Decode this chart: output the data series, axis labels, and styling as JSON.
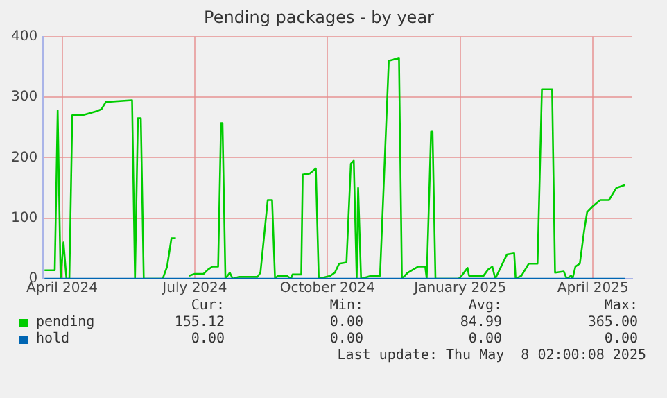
{
  "chart_data": {
    "type": "line",
    "title": "Pending packages - by year",
    "xlim": [
      "2024-03-30",
      "2025-05-08"
    ],
    "xticks": [
      {
        "value": "2024-04-12",
        "label": "April 2024"
      },
      {
        "value": "2024-07-12",
        "label": "July 2024"
      },
      {
        "value": "2024-10-11",
        "label": "October 2024"
      },
      {
        "value": "2025-01-10",
        "label": "January 2025"
      },
      {
        "value": "2025-04-11",
        "label": "April 2025"
      }
    ],
    "ylim": [
      0,
      400
    ],
    "yticks": [
      0,
      100,
      200,
      300,
      400
    ],
    "grid": true,
    "legend": "bottom",
    "marker": "none",
    "line_style": "solid",
    "series": [
      {
        "name": "hold",
        "color": "#0066b3",
        "x": [
          "2024-03-31",
          "2025-05-03"
        ],
        "values": [
          0,
          0
        ]
      },
      {
        "name": "pending",
        "color": "#00cc00",
        "x": [
          "2024-03-31",
          "2024-04-07",
          "2024-04-09",
          "2024-04-11",
          "2024-04-13",
          "2024-04-15",
          "2024-04-17",
          "2024-04-19",
          "2024-04-26",
          "2024-05-06",
          "2024-05-09",
          "2024-05-12",
          "2024-05-30",
          "2024-06-01",
          "2024-06-03",
          "2024-06-05",
          "2024-06-07",
          "2024-06-20",
          "2024-06-23",
          "2024-06-26",
          "2024-06-29",
          "2024-07-03",
          "2024-07-08",
          "2024-07-12",
          "2024-07-18",
          "2024-07-21",
          "2024-07-24",
          "2024-07-28",
          "2024-07-30",
          "2024-07-31",
          "2024-08-02",
          "2024-08-05",
          "2024-08-07",
          "2024-08-11",
          "2024-08-24",
          "2024-08-26",
          "2024-08-31",
          "2024-09-03",
          "2024-09-05",
          "2024-09-07",
          "2024-09-13",
          "2024-09-16",
          "2024-09-17",
          "2024-09-23",
          "2024-09-24",
          "2024-09-29",
          "2024-10-03",
          "2024-10-05",
          "2024-10-13",
          "2024-10-16",
          "2024-10-19",
          "2024-10-24",
          "2024-10-27",
          "2024-10-29",
          "2024-10-31",
          "2024-11-01",
          "2024-11-03",
          "2024-11-10",
          "2024-11-16",
          "2024-11-22",
          "2024-11-25",
          "2024-11-29",
          "2024-12-01",
          "2024-12-05",
          "2024-12-12",
          "2024-12-17",
          "2024-12-18",
          "2024-12-21",
          "2024-12-22",
          "2024-12-24",
          "2025-01-09",
          "2025-01-11",
          "2025-01-15",
          "2025-01-16",
          "2025-01-19",
          "2025-01-26",
          "2025-01-29",
          "2025-02-01",
          "2025-02-03",
          "2025-02-11",
          "2025-02-16",
          "2025-02-17",
          "2025-02-21",
          "2025-02-26",
          "2025-03-04",
          "2025-03-07",
          "2025-03-14",
          "2025-03-16",
          "2025-03-22",
          "2025-03-24",
          "2025-03-27",
          "2025-03-28",
          "2025-03-30",
          "2025-04-02",
          "2025-04-05",
          "2025-04-07",
          "2025-04-11",
          "2025-04-16",
          "2025-04-22",
          "2025-04-27",
          "2025-05-03"
        ],
        "values": [
          14,
          14,
          278,
          0,
          60,
          0,
          0,
          270,
          270,
          277,
          280,
          292,
          295,
          0,
          265,
          265,
          0,
          0,
          20,
          67,
          67,
          null,
          5,
          8,
          8,
          15,
          20,
          20,
          257,
          257,
          0,
          10,
          0,
          3,
          3,
          10,
          130,
          130,
          0,
          5,
          5,
          0,
          7,
          7,
          172,
          174,
          182,
          0,
          5,
          10,
          25,
          27,
          190,
          195,
          0,
          150,
          0,
          5,
          5,
          360,
          362,
          365,
          0,
          10,
          20,
          20,
          0,
          243,
          243,
          0,
          0,
          5,
          18,
          5,
          5,
          5,
          15,
          20,
          0,
          40,
          42,
          0,
          5,
          25,
          25,
          313,
          313,
          10,
          12,
          0,
          5,
          0,
          20,
          25,
          80,
          110,
          120,
          130,
          130,
          150,
          155
        ]
      }
    ],
    "annotations": [
      "Cur:",
      "Min:",
      "Avg:",
      "Max:",
      "0.00",
      "0.00",
      "0.00",
      "0.00",
      "155.12",
      "0.00",
      "84.99",
      "365.00",
      "Last update: Thu May  8 02:00:08 2025"
    ]
  }
}
